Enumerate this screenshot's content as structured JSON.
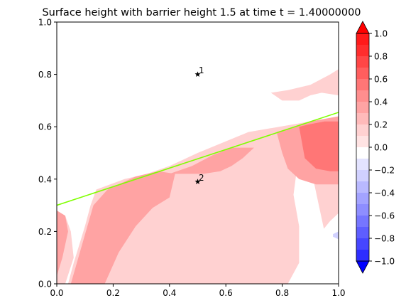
{
  "chart_data": {
    "type": "contourf",
    "title": "Surface height with barrier height 1.5 at time t =      1.40000000",
    "xlabel": "",
    "ylabel": "",
    "xlim": [
      0,
      1
    ],
    "ylim": [
      0,
      1
    ],
    "x_ticks": [
      "0.0",
      "0.2",
      "0.4",
      "0.6",
      "0.8",
      "1.0"
    ],
    "y_ticks": [
      "0.0",
      "0.2",
      "0.4",
      "0.6",
      "0.8",
      "1.0"
    ],
    "barrier_line": {
      "color": "#7fff00",
      "points": [
        [
          0,
          0.3
        ],
        [
          1,
          0.655
        ]
      ]
    },
    "markers": [
      {
        "label": "1",
        "x": 0.5,
        "y": 0.8
      },
      {
        "label": "2",
        "x": 0.5,
        "y": 0.39
      }
    ],
    "regions": [
      {
        "level": 0.1,
        "points": [
          [
            0,
            0
          ],
          [
            0.03,
            0
          ],
          [
            0.06,
            0.1
          ],
          [
            0.05,
            0.2
          ],
          [
            0.03,
            0.26
          ],
          [
            0,
            0.28
          ]
        ]
      },
      {
        "level": 0.1,
        "points": [
          [
            0.04,
            0
          ],
          [
            0.82,
            0
          ],
          [
            0.86,
            0.08
          ],
          [
            0.86,
            0.22
          ],
          [
            0.84,
            0.34
          ],
          [
            0.85,
            0.42
          ],
          [
            0.86,
            0.56
          ],
          [
            0.9,
            0.62
          ],
          [
            0.68,
            0.58
          ],
          [
            0.5,
            0.5
          ],
          [
            0.4,
            0.45
          ],
          [
            0.32,
            0.42
          ],
          [
            0.24,
            0.4
          ],
          [
            0.14,
            0.36
          ],
          [
            0.12,
            0.3
          ],
          [
            0.1,
            0.22
          ],
          [
            0.08,
            0.15
          ],
          [
            0.06,
            0.08
          ]
        ]
      },
      {
        "level": 0.1,
        "points": [
          [
            0.9,
            0
          ],
          [
            1,
            0
          ],
          [
            1,
            0.62
          ],
          [
            0.92,
            0.6
          ],
          [
            0.9,
            0.5
          ],
          [
            0.91,
            0.4
          ],
          [
            0.93,
            0.3
          ],
          [
            0.95,
            0.2
          ],
          [
            0.97,
            0.1
          ]
        ]
      },
      {
        "level": 0.1,
        "points": [
          [
            0.76,
            0.73
          ],
          [
            0.82,
            0.74
          ],
          [
            0.9,
            0.76
          ],
          [
            0.97,
            0.8
          ],
          [
            1,
            0.82
          ],
          [
            1,
            0.72
          ],
          [
            0.94,
            0.73
          ],
          [
            0.9,
            0.72
          ],
          [
            0.86,
            0.7
          ],
          [
            0.8,
            0.7
          ]
        ]
      },
      {
        "level": 0.3,
        "points": [
          [
            0,
            0.03
          ],
          [
            0.02,
            0.1
          ],
          [
            0.04,
            0.2
          ],
          [
            0.03,
            0.26
          ],
          [
            0,
            0.28
          ]
        ]
      },
      {
        "level": 0.3,
        "points": [
          [
            0.05,
            0
          ],
          [
            0.17,
            0
          ],
          [
            0.22,
            0.12
          ],
          [
            0.28,
            0.22
          ],
          [
            0.34,
            0.29
          ],
          [
            0.4,
            0.33
          ],
          [
            0.42,
            0.42
          ],
          [
            0.36,
            0.43
          ],
          [
            0.28,
            0.41
          ],
          [
            0.18,
            0.36
          ],
          [
            0.13,
            0.3
          ],
          [
            0.09,
            0.15
          ]
        ]
      },
      {
        "level": 0.3,
        "points": [
          [
            0.4,
            0.42
          ],
          [
            0.46,
            0.42
          ],
          [
            0.52,
            0.42
          ],
          [
            0.58,
            0.43
          ],
          [
            0.62,
            0.45
          ],
          [
            0.66,
            0.48
          ],
          [
            0.7,
            0.52
          ],
          [
            0.62,
            0.52
          ],
          [
            0.55,
            0.49
          ],
          [
            0.48,
            0.45
          ]
        ]
      },
      {
        "level": 0.3,
        "points": [
          [
            0.78,
            0.58
          ],
          [
            0.8,
            0.5
          ],
          [
            0.82,
            0.44
          ],
          [
            0.86,
            0.4
          ],
          [
            0.92,
            0.38
          ],
          [
            1,
            0.38
          ],
          [
            1,
            0.64
          ],
          [
            0.9,
            0.62
          ],
          [
            0.84,
            0.6
          ]
        ]
      },
      {
        "level": 0.5,
        "points": [
          [
            0.86,
            0.6
          ],
          [
            0.87,
            0.54
          ],
          [
            0.88,
            0.48
          ],
          [
            0.92,
            0.44
          ],
          [
            0.97,
            0.43
          ],
          [
            1,
            0.43
          ],
          [
            1,
            0.62
          ],
          [
            0.95,
            0.62
          ],
          [
            0.9,
            0.61
          ]
        ]
      },
      {
        "level": -0.1,
        "points": [
          [
            0.83,
            0
          ],
          [
            1,
            0
          ],
          [
            1,
            0.27
          ],
          [
            0.97,
            0.24
          ],
          [
            0.94,
            0.2
          ],
          [
            0.9,
            0.13
          ],
          [
            0.86,
            0.06
          ]
        ]
      },
      {
        "level": -0.3,
        "points": [
          [
            0.98,
            0.18
          ],
          [
            1,
            0.17
          ],
          [
            1,
            0.2
          ],
          [
            0.98,
            0.19
          ]
        ]
      }
    ],
    "colorbar": {
      "min": -1.0,
      "max": 1.0,
      "extend": "both",
      "ticks": [
        "1.0",
        "0.8",
        "0.6",
        "0.4",
        "0.2",
        "0.0",
        "−0.2",
        "−0.4",
        "−0.6",
        "−0.8",
        "−1.0"
      ],
      "levels": [
        {
          "lo": 0.9,
          "hi": 1.0,
          "color": "#ff1a1a"
        },
        {
          "lo": 0.8,
          "hi": 0.9,
          "color": "#ff2d2d"
        },
        {
          "lo": 0.7,
          "hi": 0.8,
          "color": "#ff4646"
        },
        {
          "lo": 0.6,
          "hi": 0.7,
          "color": "#ff5e5e"
        },
        {
          "lo": 0.5,
          "hi": 0.6,
          "color": "#ff7676"
        },
        {
          "lo": 0.4,
          "hi": 0.5,
          "color": "#ff8e8e"
        },
        {
          "lo": 0.3,
          "hi": 0.4,
          "color": "#ffa3a3"
        },
        {
          "lo": 0.2,
          "hi": 0.3,
          "color": "#ffbaba"
        },
        {
          "lo": 0.1,
          "hi": 0.2,
          "color": "#ffd1d1"
        },
        {
          "lo": 0.0,
          "hi": 0.1,
          "color": "#ffe3e3"
        },
        {
          "lo": -0.1,
          "hi": 0.0,
          "color": "#ffffff"
        },
        {
          "lo": -0.2,
          "hi": -0.1,
          "color": "#e3e3ff"
        },
        {
          "lo": -0.3,
          "hi": -0.2,
          "color": "#d1d1ff"
        },
        {
          "lo": -0.4,
          "hi": -0.3,
          "color": "#b9b9ff"
        },
        {
          "lo": -0.5,
          "hi": -0.4,
          "color": "#a3a3ff"
        },
        {
          "lo": -0.6,
          "hi": -0.5,
          "color": "#8e8eff"
        },
        {
          "lo": -0.7,
          "hi": -0.6,
          "color": "#7676ff"
        },
        {
          "lo": -0.8,
          "hi": -0.7,
          "color": "#5e5eff"
        },
        {
          "lo": -0.9,
          "hi": -0.8,
          "color": "#4646ff"
        },
        {
          "lo": -1.0,
          "hi": -0.9,
          "color": "#2d2dff"
        }
      ],
      "over_color": "#ff0000",
      "under_color": "#0000ff"
    }
  }
}
